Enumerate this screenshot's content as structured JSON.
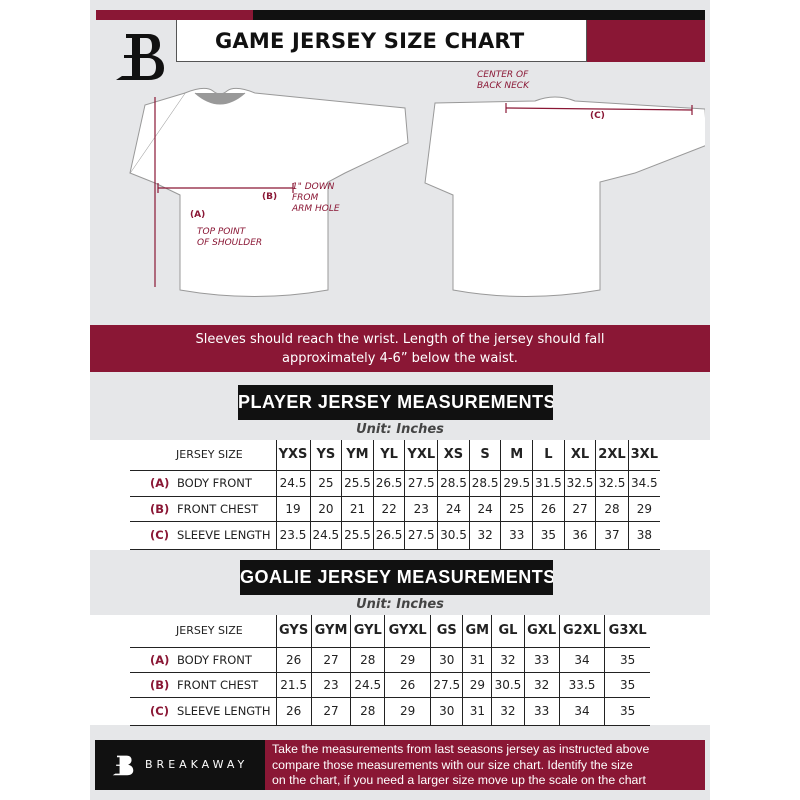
{
  "header": {
    "title": "GAME JERSEY SIZE CHART"
  },
  "diagram": {
    "front_labels": {
      "a": "(A)",
      "a_note": "TOP POINT OF SHOULDER",
      "b": "(B)",
      "b_note_1": "1\" DOWN",
      "b_note_2": "FROM",
      "b_note_3": "ARM HOLE",
      "a_note_1": "TOP POINT",
      "a_note_2": "OF SHOULDER"
    },
    "back_labels": {
      "c": "(C)",
      "c_note_1": "CENTER OF",
      "c_note_2": "BACK NECK"
    }
  },
  "banner": {
    "line1": "Sleeves should reach the wrist. Length of the jersey should fall",
    "line2": "approximately 4-6” below the waist."
  },
  "player": {
    "title": "PLAYER JERSEY MEASUREMENTS",
    "unit": "Unit: Inches",
    "size_label": "JERSEY SIZE",
    "sizes": [
      "YXS",
      "YS",
      "YM",
      "YL",
      "YXL",
      "XS",
      "S",
      "M",
      "L",
      "XL",
      "2XL",
      "3XL"
    ],
    "rows": [
      {
        "key": "(A)",
        "label": "BODY FRONT",
        "values": [
          "24.5",
          "25",
          "25.5",
          "26.5",
          "27.5",
          "28.5",
          "28.5",
          "29.5",
          "31.5",
          "32.5",
          "32.5",
          "34.5"
        ]
      },
      {
        "key": "(B)",
        "label": "FRONT CHEST",
        "values": [
          "19",
          "20",
          "21",
          "22",
          "23",
          "24",
          "24",
          "25",
          "26",
          "27",
          "28",
          "29"
        ]
      },
      {
        "key": "(C)",
        "label": "SLEEVE LENGTH",
        "values": [
          "23.5",
          "24.5",
          "25.5",
          "26.5",
          "27.5",
          "30.5",
          "32",
          "33",
          "35",
          "36",
          "37",
          "38"
        ]
      }
    ]
  },
  "goalie": {
    "title": "GOALIE JERSEY MEASUREMENTS",
    "unit": "Unit: Inches",
    "size_label": "JERSEY SIZE",
    "sizes": [
      "GYS",
      "GYM",
      "GYL",
      "GYXL",
      "GS",
      "GM",
      "GL",
      "GXL",
      "G2XL",
      "G3XL"
    ],
    "rows": [
      {
        "key": "(A)",
        "label": "BODY FRONT",
        "values": [
          "26",
          "27",
          "28",
          "29",
          "30",
          "31",
          "32",
          "33",
          "34",
          "35"
        ]
      },
      {
        "key": "(B)",
        "label": "FRONT CHEST",
        "values": [
          "21.5",
          "23",
          "24.5",
          "26",
          "27.5",
          "29",
          "30.5",
          "32",
          "33.5",
          "35"
        ]
      },
      {
        "key": "(C)",
        "label": "SLEEVE LENGTH",
        "values": [
          "26",
          "27",
          "28",
          "29",
          "30",
          "31",
          "32",
          "33",
          "34",
          "35"
        ]
      }
    ]
  },
  "footer": {
    "brand": "BREAKAWAY",
    "line1": "Take the measurements from last seasons jersey as instructed above",
    "line2": "compare those measurements  with our size chart. Identify the size",
    "line3": "on the chart, if you need a larger size move up the scale on the chart"
  },
  "colors": {
    "accent": "#8a1735",
    "dark": "#111111",
    "background": "#e6e7e9"
  }
}
